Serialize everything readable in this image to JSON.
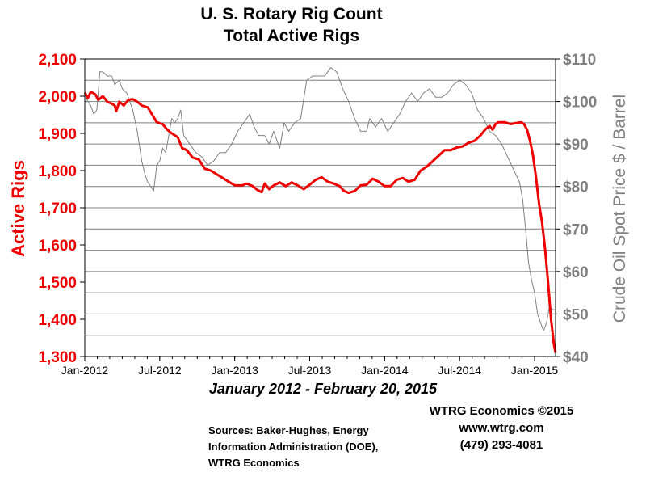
{
  "chart_data": {
    "type": "line",
    "title": "U. S. Rotary Rig Count",
    "subtitle": "Total Active Rigs",
    "period_label": "January 2012 - February 20, 2015",
    "left_axis": {
      "label": "Active Rigs",
      "ticks": [
        "2,100",
        "2,000",
        "1,900",
        "1,800",
        "1,700",
        "1,600",
        "1,500",
        "1,400",
        "1,300"
      ],
      "range": [
        1300,
        2100
      ],
      "color": "#ee0000"
    },
    "right_axis": {
      "label": "Crude Oil Spot Price $ / Barrel",
      "ticks": [
        "$110",
        "$100",
        "$90",
        "$80",
        "$70",
        "$60",
        "$50",
        "$40"
      ],
      "range": [
        40,
        110
      ],
      "color": "#808080"
    },
    "x_axis": {
      "ticks": [
        "Jan-2012",
        "Jul-2012",
        "Jan-2013",
        "Jul-2013",
        "Jan-2014",
        "Jul-2014",
        "Jan-2015"
      ],
      "range": [
        2012.0,
        2015.14
      ]
    },
    "grid": true,
    "series": [
      {
        "axis": "left",
        "color": "#ee0000",
        "points": [
          [
            2012.0,
            2010
          ],
          [
            2012.02,
            1995
          ],
          [
            2012.04,
            2012
          ],
          [
            2012.07,
            2005
          ],
          [
            2012.09,
            1990
          ],
          [
            2012.12,
            2000
          ],
          [
            2012.15,
            1985
          ],
          [
            2012.18,
            1980
          ],
          [
            2012.2,
            1975
          ],
          [
            2012.21,
            1960
          ],
          [
            2012.23,
            1985
          ],
          [
            2012.26,
            1975
          ],
          [
            2012.29,
            1990
          ],
          [
            2012.32,
            1992
          ],
          [
            2012.35,
            1985
          ],
          [
            2012.38,
            1975
          ],
          [
            2012.42,
            1970
          ],
          [
            2012.45,
            1950
          ],
          [
            2012.48,
            1930
          ],
          [
            2012.52,
            1925
          ],
          [
            2012.55,
            1910
          ],
          [
            2012.58,
            1900
          ],
          [
            2012.62,
            1890
          ],
          [
            2012.65,
            1860
          ],
          [
            2012.68,
            1855
          ],
          [
            2012.72,
            1835
          ],
          [
            2012.76,
            1830
          ],
          [
            2012.8,
            1805
          ],
          [
            2012.84,
            1800
          ],
          [
            2012.88,
            1790
          ],
          [
            2012.92,
            1780
          ],
          [
            2012.96,
            1770
          ],
          [
            2013.0,
            1760
          ],
          [
            2013.05,
            1760
          ],
          [
            2013.08,
            1765
          ],
          [
            2013.12,
            1758
          ],
          [
            2013.15,
            1748
          ],
          [
            2013.18,
            1742
          ],
          [
            2013.2,
            1765
          ],
          [
            2013.23,
            1750
          ],
          [
            2013.26,
            1760
          ],
          [
            2013.3,
            1768
          ],
          [
            2013.34,
            1758
          ],
          [
            2013.38,
            1768
          ],
          [
            2013.42,
            1760
          ],
          [
            2013.46,
            1750
          ],
          [
            2013.5,
            1762
          ],
          [
            2013.54,
            1775
          ],
          [
            2013.58,
            1782
          ],
          [
            2013.62,
            1770
          ],
          [
            2013.66,
            1765
          ],
          [
            2013.7,
            1758
          ],
          [
            2013.73,
            1745
          ],
          [
            2013.76,
            1740
          ],
          [
            2013.8,
            1745
          ],
          [
            2013.84,
            1760
          ],
          [
            2013.88,
            1762
          ],
          [
            2013.92,
            1778
          ],
          [
            2013.96,
            1770
          ],
          [
            2014.0,
            1758
          ],
          [
            2014.04,
            1758
          ],
          [
            2014.08,
            1775
          ],
          [
            2014.12,
            1780
          ],
          [
            2014.16,
            1770
          ],
          [
            2014.2,
            1775
          ],
          [
            2014.24,
            1800
          ],
          [
            2014.28,
            1810
          ],
          [
            2014.32,
            1825
          ],
          [
            2014.36,
            1840
          ],
          [
            2014.4,
            1855
          ],
          [
            2014.44,
            1855
          ],
          [
            2014.48,
            1862
          ],
          [
            2014.52,
            1865
          ],
          [
            2014.56,
            1875
          ],
          [
            2014.6,
            1880
          ],
          [
            2014.64,
            1895
          ],
          [
            2014.67,
            1910
          ],
          [
            2014.7,
            1920
          ],
          [
            2014.72,
            1910
          ],
          [
            2014.74,
            1925
          ],
          [
            2014.76,
            1930
          ],
          [
            2014.8,
            1930
          ],
          [
            2014.84,
            1925
          ],
          [
            2014.88,
            1928
          ],
          [
            2014.91,
            1930
          ],
          [
            2014.93,
            1925
          ],
          [
            2014.95,
            1910
          ],
          [
            2014.97,
            1880
          ],
          [
            2014.99,
            1840
          ],
          [
            2015.01,
            1780
          ],
          [
            2015.03,
            1710
          ],
          [
            2015.05,
            1660
          ],
          [
            2015.07,
            1590
          ],
          [
            2015.09,
            1500
          ],
          [
            2015.11,
            1400
          ],
          [
            2015.13,
            1330
          ],
          [
            2015.14,
            1310
          ]
        ]
      },
      {
        "axis": "right",
        "color": "#808080",
        "points": [
          [
            2012.0,
            102
          ],
          [
            2012.02,
            100
          ],
          [
            2012.04,
            99
          ],
          [
            2012.06,
            97
          ],
          [
            2012.08,
            98
          ],
          [
            2012.09,
            102
          ],
          [
            2012.1,
            107
          ],
          [
            2012.12,
            107
          ],
          [
            2012.15,
            106
          ],
          [
            2012.18,
            106
          ],
          [
            2012.2,
            104
          ],
          [
            2012.23,
            105
          ],
          [
            2012.25,
            103
          ],
          [
            2012.28,
            102
          ],
          [
            2012.32,
            98
          ],
          [
            2012.35,
            93
          ],
          [
            2012.38,
            86
          ],
          [
            2012.4,
            83
          ],
          [
            2012.42,
            81
          ],
          [
            2012.44,
            80
          ],
          [
            2012.46,
            79
          ],
          [
            2012.48,
            85
          ],
          [
            2012.5,
            86
          ],
          [
            2012.52,
            89
          ],
          [
            2012.54,
            88
          ],
          [
            2012.56,
            92
          ],
          [
            2012.58,
            96
          ],
          [
            2012.6,
            95
          ],
          [
            2012.62,
            96
          ],
          [
            2012.64,
            98
          ],
          [
            2012.66,
            92
          ],
          [
            2012.7,
            90
          ],
          [
            2012.74,
            88
          ],
          [
            2012.78,
            87
          ],
          [
            2012.82,
            85
          ],
          [
            2012.86,
            86
          ],
          [
            2012.9,
            88
          ],
          [
            2012.94,
            88
          ],
          [
            2012.98,
            90
          ],
          [
            2013.02,
            93
          ],
          [
            2013.06,
            95
          ],
          [
            2013.1,
            97
          ],
          [
            2013.13,
            94
          ],
          [
            2013.16,
            92
          ],
          [
            2013.2,
            92
          ],
          [
            2013.23,
            90
          ],
          [
            2013.26,
            93
          ],
          [
            2013.3,
            89
          ],
          [
            2013.33,
            95
          ],
          [
            2013.36,
            93
          ],
          [
            2013.4,
            95
          ],
          [
            2013.44,
            96
          ],
          [
            2013.48,
            105
          ],
          [
            2013.52,
            106
          ],
          [
            2013.56,
            106
          ],
          [
            2013.6,
            106
          ],
          [
            2013.62,
            107
          ],
          [
            2013.64,
            108
          ],
          [
            2013.68,
            107
          ],
          [
            2013.72,
            103
          ],
          [
            2013.76,
            100
          ],
          [
            2013.8,
            96
          ],
          [
            2013.84,
            93
          ],
          [
            2013.88,
            93
          ],
          [
            2013.9,
            96
          ],
          [
            2013.94,
            94
          ],
          [
            2013.98,
            96
          ],
          [
            2014.02,
            93
          ],
          [
            2014.06,
            95
          ],
          [
            2014.1,
            97
          ],
          [
            2014.14,
            100
          ],
          [
            2014.18,
            102
          ],
          [
            2014.22,
            100
          ],
          [
            2014.26,
            102
          ],
          [
            2014.3,
            103
          ],
          [
            2014.34,
            101
          ],
          [
            2014.38,
            101
          ],
          [
            2014.42,
            102
          ],
          [
            2014.46,
            104
          ],
          [
            2014.5,
            105
          ],
          [
            2014.54,
            104
          ],
          [
            2014.58,
            102
          ],
          [
            2014.62,
            98
          ],
          [
            2014.66,
            96
          ],
          [
            2014.7,
            93
          ],
          [
            2014.74,
            92
          ],
          [
            2014.78,
            90
          ],
          [
            2014.82,
            87
          ],
          [
            2014.86,
            84
          ],
          [
            2014.9,
            81
          ],
          [
            2014.92,
            77
          ],
          [
            2014.94,
            70
          ],
          [
            2014.96,
            62
          ],
          [
            2014.98,
            58
          ],
          [
            2015.0,
            55
          ],
          [
            2015.02,
            50
          ],
          [
            2015.04,
            48
          ],
          [
            2015.06,
            46
          ],
          [
            2015.08,
            48
          ],
          [
            2015.1,
            52
          ],
          [
            2015.12,
            51
          ],
          [
            2015.14,
            51
          ]
        ]
      }
    ]
  },
  "credits": {
    "company": "WTRG Economics  ©2015",
    "website": "www.wtrg.com",
    "phone": "(479) 293-4081"
  },
  "sources": {
    "line1": "Sources: Baker-Hughes, Energy",
    "line2": "Information Administration (DOE),",
    "line3": "WTRG Economics"
  }
}
